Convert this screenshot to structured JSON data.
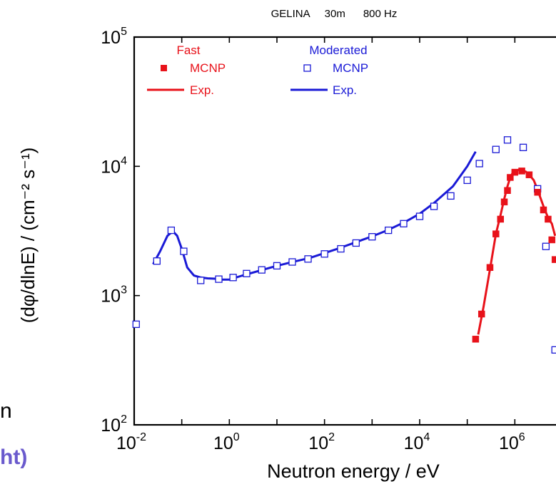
{
  "fragments": {
    "left_letter": "n",
    "left_bottom": "ht)",
    "left_bottom_color": "#6a5acd"
  },
  "chart_data": {
    "type": "scatter",
    "title": "GELINA     30m      800 Hz",
    "xlabel": "Neutron energy / eV",
    "ylabel": "(dφ/dlnE) / (cm⁻² s⁻¹)",
    "x_scale": "log",
    "y_scale": "log",
    "xlim": [
      0.01,
      10000000
    ],
    "ylim": [
      100,
      100000
    ],
    "x_ticks": [
      {
        "value": 0.01,
        "base": "10",
        "exp": "-2"
      },
      {
        "value": 1,
        "base": "10",
        "exp": "0"
      },
      {
        "value": 100,
        "base": "10",
        "exp": "2"
      },
      {
        "value": 10000,
        "base": "10",
        "exp": "4"
      },
      {
        "value": 1000000,
        "base": "10",
        "exp": "6"
      }
    ],
    "y_ticks": [
      {
        "value": 100,
        "base": "10",
        "exp": "2"
      },
      {
        "value": 1000,
        "base": "10",
        "exp": "3"
      },
      {
        "value": 10000,
        "base": "10",
        "exp": "4"
      },
      {
        "value": 100000,
        "base": "10",
        "exp": "5"
      }
    ],
    "legend": {
      "placement": "top-left",
      "groups": [
        {
          "title": "Fast",
          "color": "#e8121a",
          "items": [
            "MCNP",
            "Exp."
          ]
        },
        {
          "title": "Moderated",
          "color": "#1a1ad6",
          "items": [
            "MCNP",
            "Exp."
          ]
        }
      ]
    },
    "series": [
      {
        "name": "MCNP",
        "group": "Moderated",
        "kind": "markers-open-square",
        "color": "#1a1ad6",
        "x": [
          0.011,
          0.03,
          0.06,
          0.11,
          0.25,
          0.6,
          1.2,
          2.3,
          4.8,
          10,
          21,
          45,
          100,
          220,
          460,
          1000,
          2200,
          4600,
          10000,
          20000,
          45000,
          100000,
          180000,
          400000,
          700000,
          1500000,
          3000000,
          4500000,
          7000000
        ],
        "y": [
          600,
          1850,
          3200,
          2200,
          1310,
          1340,
          1380,
          1480,
          1580,
          1700,
          1820,
          1920,
          2100,
          2300,
          2550,
          2850,
          3200,
          3600,
          4100,
          4900,
          5900,
          7800,
          10500,
          13500,
          16000,
          14000,
          6700,
          2400,
          380
        ]
      },
      {
        "name": "Exp.",
        "group": "Moderated",
        "kind": "line",
        "color": "#1a1ad6",
        "x": [
          0.025,
          0.035,
          0.05,
          0.065,
          0.08,
          0.1,
          0.13,
          0.18,
          0.25,
          0.35,
          0.5,
          0.7,
          1,
          2,
          5,
          10,
          20,
          50,
          100,
          200,
          500,
          1000,
          2000,
          5000,
          10000,
          20000,
          50000,
          100000,
          150000
        ],
        "y": [
          1750,
          2200,
          2900,
          3150,
          2900,
          2300,
          1650,
          1430,
          1380,
          1360,
          1350,
          1330,
          1330,
          1440,
          1580,
          1700,
          1810,
          1960,
          2130,
          2320,
          2620,
          2870,
          3180,
          3720,
          4300,
          5200,
          7000,
          10000,
          13000
        ]
      },
      {
        "name": "MCNP",
        "group": "Fast",
        "kind": "markers-filled-square",
        "color": "#e8121a",
        "x": [
          150000,
          200000,
          300000,
          400000,
          500000,
          600000,
          700000,
          800000,
          1000000,
          1400000,
          2000000,
          3000000,
          4000000,
          5000000,
          6000000,
          7000000
        ],
        "y": [
          460,
          720,
          1650,
          3000,
          3900,
          5300,
          6500,
          8200,
          9000,
          9200,
          8600,
          6300,
          4600,
          3900,
          2700,
          1900
        ]
      },
      {
        "name": "Exp.",
        "group": "Fast",
        "kind": "line",
        "color": "#e8121a",
        "x": [
          170000,
          220000,
          300000,
          400000,
          500000,
          600000,
          700000,
          800000,
          900000,
          1000000,
          1200000,
          1400000,
          1700000,
          2000000,
          2500000,
          3000000,
          4000000,
          5000000,
          6000000,
          7000000
        ],
        "y": [
          500,
          820,
          1600,
          3000,
          4200,
          5600,
          7000,
          8200,
          8900,
          9200,
          9400,
          9300,
          9100,
          8600,
          7800,
          6600,
          4900,
          4000,
          3600,
          2900
        ]
      }
    ]
  }
}
